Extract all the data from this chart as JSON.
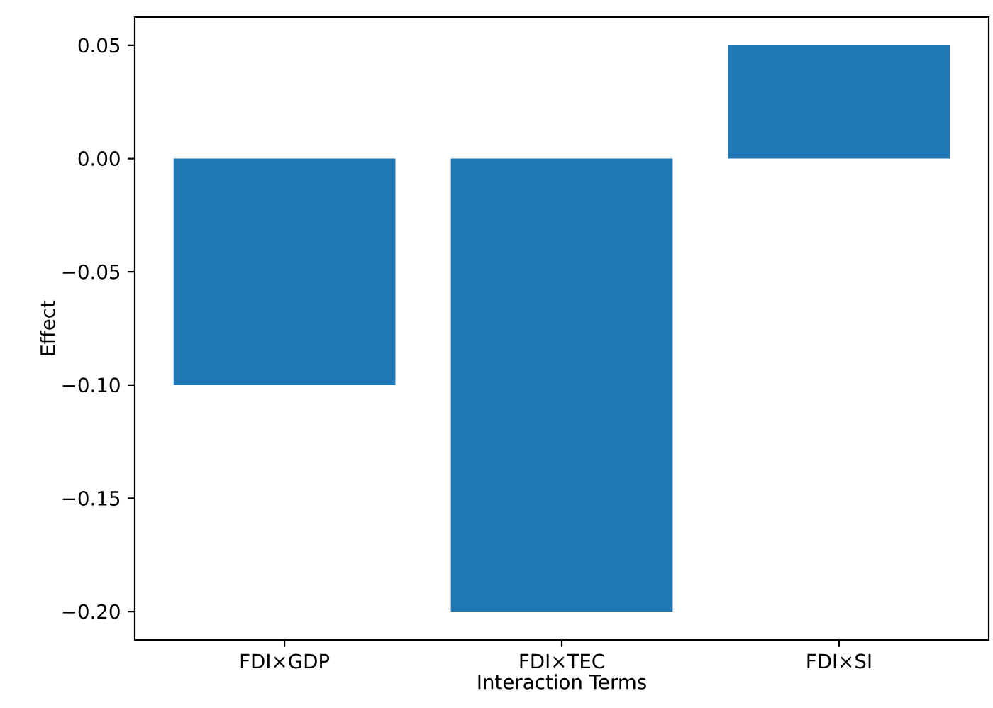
{
  "chart_data": {
    "type": "bar",
    "xlabel": "Interaction Terms",
    "ylabel": "Effect",
    "categories": [
      "FDI×GDP",
      "FDI×TEC",
      "FDI×SI"
    ],
    "values": [
      -0.1,
      -0.2,
      0.05
    ],
    "color": "#1f77b4",
    "ylim": [
      -0.2125,
      0.0625
    ],
    "yticks": [
      {
        "value": -0.2,
        "label": "−0.20"
      },
      {
        "value": -0.15,
        "label": "−0.15"
      },
      {
        "value": -0.1,
        "label": "−0.10"
      },
      {
        "value": -0.05,
        "label": "−0.05"
      },
      {
        "value": 0,
        "label": "0.00"
      },
      {
        "value": 0.05,
        "label": "0.05"
      }
    ]
  }
}
